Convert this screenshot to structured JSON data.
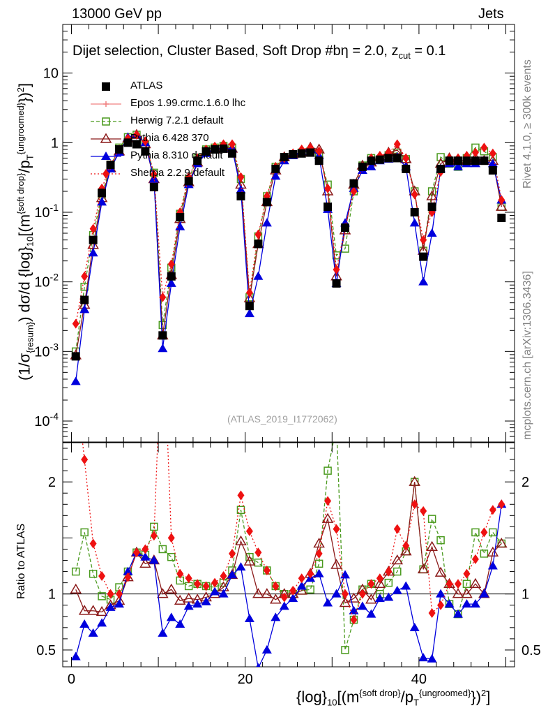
{
  "header": {
    "left": "13000 GeV pp",
    "right": "Jets"
  },
  "side_text": {
    "rivet": "Rivet 4.1.0, ≥ 300k events",
    "mcplots": "mcplots.cern.ch [arXiv:1306.3436]"
  },
  "annotation": {
    "selection": "Dijet selection, Cluster Based, Soft Drop #b",
    "beta": "η = 2.0, z",
    "zcut_sub": "cut",
    "zcut_val": " = 0.1",
    "analysis_ref": "(ATLAS_2019_I1772062)"
  },
  "axes": {
    "main_ylabel": {
      "pre": "(1/σ",
      "sub1": "{resum}",
      "mid": ") dσ/d {log}",
      "sub2": "10",
      "post": "[(m",
      "sup1": "{soft drop}",
      "mid2": "/p",
      "sub3": "T",
      "sup2": "{ungroomed}",
      "post2": "})",
      "sup3": "2",
      "end": "]"
    },
    "ratio_ylabel": "Ratio to ATLAS",
    "xlabel": {
      "pre": "{log}",
      "sub1": "10",
      "mid": "[(m",
      "sup1": "{soft drop}",
      "mid2": "/p",
      "sub2": "T",
      "sup2": "{ungroomed}",
      "post": "})",
      "sup3": "2",
      "end": "]"
    }
  },
  "legend": [
    {
      "label": "ATLAS",
      "color": "#000000",
      "marker": "square-filled",
      "line": "none"
    },
    {
      "label": "Epos 1.99.crmc.1.6.0 lhc",
      "color": "#f08080",
      "marker": "plus",
      "line": "solid"
    },
    {
      "label": "Herwig 7.2.1 default",
      "color": "#4a9a1e",
      "marker": "square-open",
      "line": "dashed"
    },
    {
      "label": "Pythia 6.428 370",
      "color": "#8b1a1a",
      "marker": "triangle-open",
      "line": "solid"
    },
    {
      "label": "Pythia 8.310 default",
      "color": "#0000dd",
      "marker": "triangle-filled",
      "line": "solid"
    },
    {
      "label": "Sherpa 2.2.9 default",
      "color": "#ee1111",
      "marker": "diamond-filled",
      "line": "dotted"
    }
  ],
  "chart_data": {
    "type": "scatter",
    "title": "Dijet selection, Cluster Based, Soft Drop",
    "xlabel": "{log}10[(m{soft drop}/pT{ungroomed})2]",
    "ylabel": "(1/σ{resum}) dσ/d {log}10[(m{soft drop}/pT{ungroomed})2]",
    "xlim": [
      -1,
      51
    ],
    "ylim": [
      5e-05,
      50
    ],
    "yscale": "log",
    "ratio_ylim": [
      0.35,
      2.35
    ],
    "x_ticks": [
      "0",
      "20",
      "40"
    ],
    "y_ticks": [
      "10^-4",
      "10^-3",
      "10^-2",
      "10^-1",
      "1",
      "10"
    ],
    "ratio_ticks": [
      "0.5",
      "1",
      "2"
    ],
    "x": [
      0.5,
      1.5,
      2.5,
      3.5,
      4.5,
      5.5,
      6.5,
      7.5,
      8.5,
      9.5,
      10.5,
      11.5,
      12.5,
      13.5,
      14.5,
      15.5,
      16.5,
      17.5,
      18.5,
      19.5,
      20.5,
      21.5,
      22.5,
      23.5,
      24.5,
      25.5,
      26.5,
      27.5,
      28.5,
      29.5,
      30.5,
      31.5,
      32.5,
      33.5,
      34.5,
      35.5,
      36.5,
      37.5,
      38.5,
      39.5,
      40.5,
      41.5,
      42.5,
      43.5,
      44.5,
      45.5,
      46.5,
      47.5,
      48.5,
      49.5
    ],
    "series": [
      {
        "name": "ATLAS",
        "values": [
          0.00085,
          0.0055,
          0.04,
          0.19,
          0.48,
          0.8,
          1.0,
          0.95,
          0.75,
          0.23,
          0.0017,
          0.012,
          0.085,
          0.28,
          0.55,
          0.75,
          0.8,
          0.82,
          0.7,
          0.17,
          0.0045,
          0.035,
          0.14,
          0.42,
          0.62,
          0.68,
          0.7,
          0.72,
          0.55,
          0.12,
          0.0095,
          0.06,
          0.26,
          0.45,
          0.55,
          0.57,
          0.6,
          0.6,
          0.42,
          0.1,
          0.023,
          0.12,
          0.42,
          0.55,
          0.55,
          0.55,
          0.55,
          0.55,
          0.4,
          0.083
        ]
      },
      {
        "name": "Epos 1.99.crmc.1.6.0 lhc",
        "values": []
      },
      {
        "name": "Herwig 7.2.1 default",
        "values": [
          0.001,
          0.0085,
          0.047,
          0.18,
          0.45,
          0.85,
          1.2,
          1.3,
          0.95,
          0.37,
          0.0024,
          0.016,
          0.095,
          0.3,
          0.6,
          0.8,
          0.85,
          0.9,
          0.85,
          0.3,
          0.006,
          0.045,
          0.17,
          0.45,
          0.62,
          0.68,
          0.72,
          0.75,
          0.7,
          0.25,
          0.024,
          0.03,
          0.2,
          0.47,
          0.6,
          0.57,
          0.66,
          0.72,
          0.58,
          0.2,
          0.028,
          0.2,
          0.62,
          0.5,
          0.45,
          0.6,
          0.85,
          0.75,
          0.62,
          0.12
        ]
      },
      {
        "name": "Pythia 6.428 370",
        "values": [
          0.00088,
          0.0047,
          0.034,
          0.16,
          0.43,
          0.75,
          1.15,
          1.3,
          0.95,
          0.3,
          0.0017,
          0.0125,
          0.08,
          0.27,
          0.52,
          0.73,
          0.8,
          0.87,
          0.82,
          0.25,
          0.0058,
          0.035,
          0.14,
          0.4,
          0.62,
          0.68,
          0.72,
          0.85,
          0.8,
          0.2,
          0.012,
          0.055,
          0.25,
          0.47,
          0.52,
          0.62,
          0.72,
          0.78,
          0.58,
          0.2,
          0.028,
          0.17,
          0.5,
          0.6,
          0.55,
          0.55,
          0.6,
          0.55,
          0.55,
          0.12
        ]
      },
      {
        "name": "Pythia 8.310 default",
        "values": [
          0.00037,
          0.004,
          0.026,
          0.14,
          0.42,
          0.73,
          1.2,
          1.3,
          1.0,
          0.3,
          0.0011,
          0.0095,
          0.062,
          0.25,
          0.5,
          0.7,
          0.82,
          0.82,
          0.82,
          0.21,
          0.0035,
          0.012,
          0.07,
          0.33,
          0.55,
          0.65,
          0.75,
          0.82,
          0.65,
          0.11,
          0.0095,
          0.07,
          0.22,
          0.4,
          0.45,
          0.55,
          0.58,
          0.62,
          0.45,
          0.07,
          0.01,
          0.05,
          0.42,
          0.5,
          0.45,
          0.5,
          0.5,
          0.55,
          0.5,
          0.15
        ]
      },
      {
        "name": "Sherpa 2.2.9 default",
        "values": [
          0.0025,
          0.012,
          0.058,
          0.22,
          0.48,
          0.8,
          1.15,
          1.3,
          1.05,
          0.35,
          0.006,
          0.018,
          0.1,
          0.32,
          0.6,
          0.8,
          0.88,
          0.95,
          0.95,
          0.32,
          0.007,
          0.048,
          0.17,
          0.45,
          0.6,
          0.7,
          0.8,
          0.85,
          0.75,
          0.22,
          0.015,
          0.06,
          0.2,
          0.45,
          0.6,
          0.65,
          0.72,
          0.95,
          0.6,
          0.18,
          0.04,
          0.1,
          0.38,
          0.6,
          0.6,
          0.65,
          0.72,
          0.85,
          0.7,
          0.15
        ]
      }
    ],
    "ratio_series": [
      {
        "name": "Herwig 7.2.1 default",
        "values": [
          1.2,
          1.55,
          1.18,
          0.98,
          0.95,
          1.06,
          1.2,
          1.37,
          1.35,
          1.6,
          1.4,
          1.33,
          1.12,
          1.07,
          1.09,
          1.07,
          1.06,
          1.1,
          1.21,
          1.75,
          1.33,
          1.28,
          1.21,
          1.07,
          1.0,
          1.0,
          1.03,
          1.04,
          1.27,
          2.1,
          2.5,
          0.5,
          0.77,
          1.04,
          1.09,
          1.0,
          1.1,
          1.2,
          1.38,
          2.0,
          1.22,
          1.67,
          1.48,
          0.91,
          0.82,
          1.09,
          1.55,
          1.36,
          1.55,
          1.45
        ]
      },
      {
        "name": "Pythia 6.428 370",
        "values": [
          1.04,
          0.85,
          0.85,
          0.84,
          0.9,
          0.94,
          1.15,
          1.37,
          1.27,
          1.3,
          1.0,
          1.04,
          0.94,
          0.96,
          0.95,
          0.97,
          1.0,
          1.06,
          1.17,
          1.47,
          1.29,
          1.0,
          1.0,
          0.95,
          1.0,
          1.0,
          1.03,
          1.18,
          1.45,
          1.67,
          1.26,
          0.92,
          0.96,
          1.04,
          0.95,
          1.09,
          1.2,
          1.3,
          1.38,
          2.0,
          1.22,
          1.42,
          1.19,
          1.09,
          1.0,
          1.0,
          1.09,
          1.0,
          1.37,
          1.45
        ]
      },
      {
        "name": "Pythia 8.310 default",
        "values": [
          0.44,
          0.73,
          0.65,
          0.74,
          0.88,
          0.91,
          1.2,
          1.37,
          1.33,
          1.3,
          0.65,
          0.79,
          0.73,
          0.89,
          0.91,
          0.93,
          1.02,
          1.0,
          1.17,
          1.24,
          0.78,
          0.34,
          0.5,
          0.79,
          0.89,
          0.96,
          1.07,
          1.14,
          1.18,
          0.92,
          1.0,
          1.17,
          0.85,
          0.89,
          0.82,
          0.96,
          0.97,
          1.03,
          1.07,
          0.7,
          0.43,
          0.42,
          1.0,
          0.91,
          0.82,
          0.91,
          0.91,
          1.0,
          1.25,
          1.8
        ]
      },
      {
        "name": "Sherpa 2.2.9 default",
        "values": [
          2.9,
          2.2,
          1.45,
          1.16,
          1.0,
          1.0,
          1.15,
          1.37,
          1.4,
          1.52,
          3.5,
          1.5,
          1.18,
          1.14,
          1.09,
          1.07,
          1.1,
          1.16,
          1.36,
          1.88,
          1.56,
          1.37,
          1.21,
          1.07,
          0.97,
          1.03,
          1.14,
          1.18,
          1.36,
          1.83,
          1.58,
          1.0,
          0.77,
          1.0,
          1.09,
          1.14,
          1.2,
          1.58,
          1.43,
          1.8,
          1.74,
          0.83,
          0.9,
          1.09,
          1.09,
          1.18,
          1.31,
          1.55,
          1.75,
          1.8
        ]
      }
    ]
  }
}
